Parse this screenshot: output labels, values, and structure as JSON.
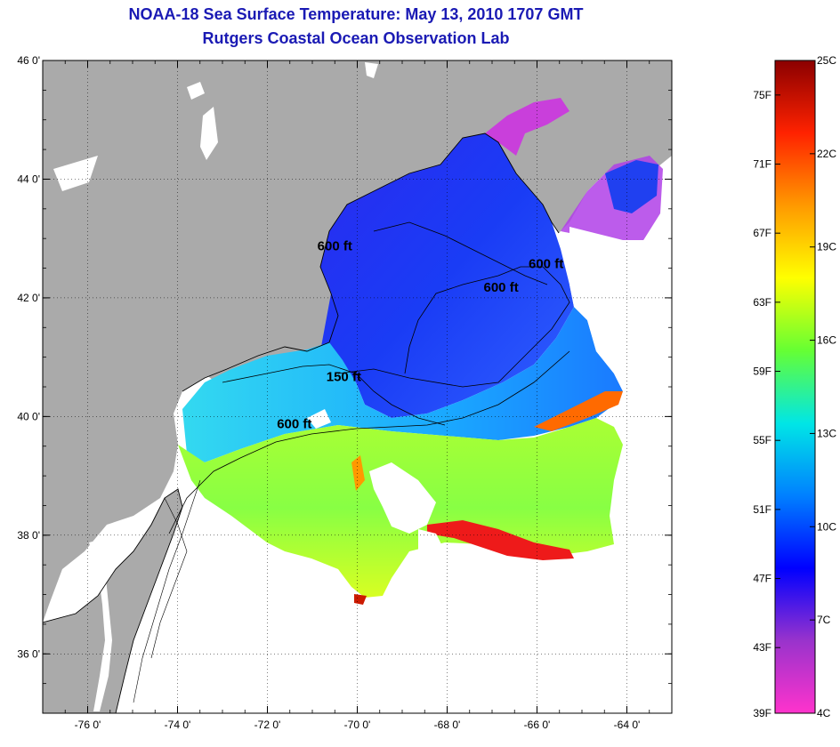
{
  "title": {
    "line1": "NOAA-18 Sea Surface Temperature:  May 13, 2010 1707 GMT",
    "line2": "Rutgers Coastal Ocean Observation Lab"
  },
  "map": {
    "lat_range": [
      35.0,
      46.0
    ],
    "lon_range": [
      -77.0,
      -63.0
    ],
    "lat_ticks": [
      {
        "value": 46,
        "label": "46 0'"
      },
      {
        "value": 44,
        "label": "44 0'"
      },
      {
        "value": 42,
        "label": "42 0'"
      },
      {
        "value": 40,
        "label": "40 0'"
      },
      {
        "value": 38,
        "label": "38 0'"
      },
      {
        "value": 36,
        "label": "36 0'"
      }
    ],
    "lon_ticks": [
      {
        "value": -76,
        "label": "-76 0'"
      },
      {
        "value": -74,
        "label": "-74 0'"
      },
      {
        "value": -72,
        "label": "-72 0'"
      },
      {
        "value": -70,
        "label": "-70 0'"
      },
      {
        "value": -68,
        "label": "-68 0'"
      },
      {
        "value": -66,
        "label": "-66 0'"
      },
      {
        "value": -64,
        "label": "-64 0'"
      }
    ],
    "contour_labels": [
      {
        "text": "600 ft",
        "lon": -70.5,
        "lat": 42.8
      },
      {
        "text": "600 ft",
        "lon": -65.8,
        "lat": 42.5
      },
      {
        "text": "600 ft",
        "lon": -66.8,
        "lat": 42.1
      },
      {
        "text": "150 ft",
        "lon": -70.3,
        "lat": 40.6
      },
      {
        "text": "600 ft",
        "lon": -71.4,
        "lat": 39.8
      }
    ],
    "colors": {
      "land": "#aaaaaa",
      "no_data": "#ffffff"
    }
  },
  "colorbar": {
    "fahrenheit": [
      {
        "value": 75,
        "label": "75F"
      },
      {
        "value": 71,
        "label": "71F"
      },
      {
        "value": 67,
        "label": "67F"
      },
      {
        "value": 63,
        "label": "63F"
      },
      {
        "value": 59,
        "label": "59F"
      },
      {
        "value": 55,
        "label": "55F"
      },
      {
        "value": 51,
        "label": "51F"
      },
      {
        "value": 47,
        "label": "47F"
      },
      {
        "value": 43,
        "label": "43F"
      },
      {
        "value": 39,
        "label": "39F"
      }
    ],
    "celsius": [
      {
        "value": 25,
        "label": "25C"
      },
      {
        "value": 22,
        "label": "22C"
      },
      {
        "value": 19,
        "label": "19C"
      },
      {
        "value": 16,
        "label": "16C"
      },
      {
        "value": 13,
        "label": "13C"
      },
      {
        "value": 10,
        "label": "10C"
      },
      {
        "value": 7,
        "label": "7C"
      },
      {
        "value": 4,
        "label": "4C"
      }
    ],
    "range_c": [
      4,
      25
    ],
    "gradient": [
      "#ff33cc",
      "#9933cc",
      "#0000ff",
      "#0080ff",
      "#00e6e6",
      "#66ff33",
      "#ffff00",
      "#ff9900",
      "#ff2200",
      "#8b0000"
    ]
  }
}
